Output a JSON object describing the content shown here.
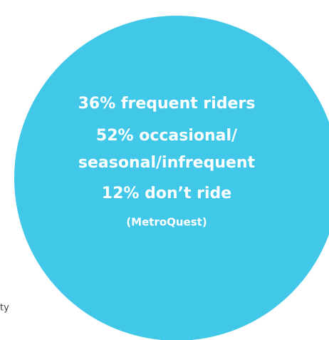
{
  "lines": [
    "36% frequent riders",
    "52% occasional/",
    "seasonal/infrequent",
    "12% don’t ride"
  ],
  "source": "(MetroQuest)",
  "fragment": "ty"
}
